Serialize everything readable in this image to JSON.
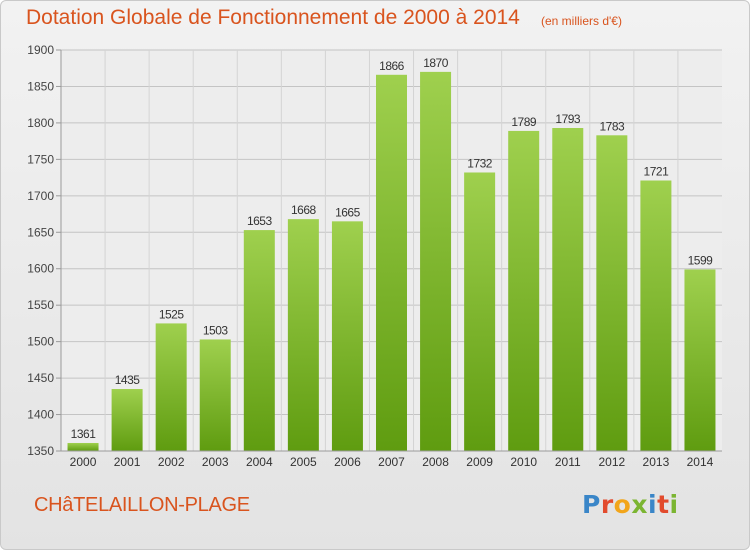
{
  "header": {
    "title": "Dotation Globale de Fonctionnement de 2000 à 2014",
    "subtitle": "(en milliers d'€)"
  },
  "footer": {
    "place": "CHâTELAILLON-PLAGE",
    "logo_text": "Proxiti"
  },
  "colors": {
    "title": "#d9541e",
    "bar_top": "#9fd04e",
    "bar_bottom": "#5f9c10",
    "logo": [
      "#3a86c8",
      "#e24b2d",
      "#f2a51a",
      "#7bb531",
      "#3a86c8",
      "#e24b2d",
      "#7bb531"
    ]
  },
  "chart_data": {
    "type": "bar",
    "categories": [
      "2000",
      "2001",
      "2002",
      "2003",
      "2004",
      "2005",
      "2006",
      "2007",
      "2008",
      "2009",
      "2010",
      "2011",
      "2012",
      "2013",
      "2014"
    ],
    "values": [
      1361,
      1435,
      1525,
      1503,
      1653,
      1668,
      1665,
      1866,
      1870,
      1732,
      1789,
      1793,
      1783,
      1721,
      1599
    ],
    "ylim": [
      1350,
      1900
    ],
    "yticks": [
      1350,
      1400,
      1450,
      1500,
      1550,
      1600,
      1650,
      1700,
      1750,
      1800,
      1850,
      1900
    ],
    "grid": true,
    "data_labels": true
  }
}
